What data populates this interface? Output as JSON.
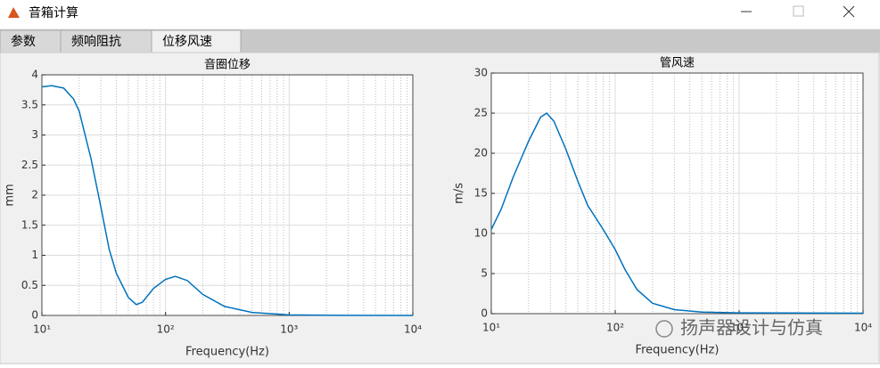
{
  "window": {
    "title": "音箱计算",
    "tabs": [
      "参数",
      "频响阻抗",
      "位移风速"
    ]
  },
  "watermark": "扬声器设计与仿真",
  "chart_data": [
    {
      "type": "line",
      "title": "音圈位移",
      "x_label": "Frequency(Hz)",
      "y_label": "mm",
      "xscale": "log",
      "grid": true,
      "minor_grid": true,
      "color": "#0072bd",
      "x": [
        10,
        12,
        15,
        18,
        20,
        25,
        30,
        35,
        40,
        50,
        58,
        65,
        80,
        100,
        120,
        150,
        200,
        300,
        500,
        1000,
        2000,
        10000
      ],
      "values": [
        3.8,
        3.82,
        3.78,
        3.6,
        3.4,
        2.6,
        1.8,
        1.1,
        0.7,
        0.3,
        0.18,
        0.22,
        0.45,
        0.6,
        0.65,
        0.58,
        0.35,
        0.15,
        0.05,
        0.01,
        0.003,
        0
      ],
      "xlim": [
        10,
        10000
      ],
      "xticks": [
        {
          "value": 10,
          "label": "10¹"
        },
        {
          "value": 100,
          "label": "10²"
        },
        {
          "value": 1000,
          "label": "10³"
        },
        {
          "value": 10000,
          "label": "10⁴"
        }
      ],
      "ylim": [
        0,
        4
      ],
      "yticks": [
        0,
        0.5,
        1,
        1.5,
        2,
        2.5,
        3,
        3.5,
        4
      ]
    },
    {
      "type": "line",
      "title": "管风速",
      "x_label": "Frequency(Hz)",
      "y_label": "m/s",
      "xscale": "log",
      "grid": true,
      "minor_grid": true,
      "color": "#0072bd",
      "x": [
        10,
        12,
        15,
        20,
        25,
        28,
        32,
        40,
        50,
        60,
        80,
        100,
        120,
        150,
        200,
        300,
        500,
        1000,
        10000
      ],
      "values": [
        10.5,
        13,
        17,
        21.5,
        24.5,
        25,
        24,
        20.5,
        16.5,
        13.5,
        10.5,
        8,
        5.5,
        3,
        1.3,
        0.5,
        0.2,
        0.1,
        0.05
      ],
      "xlim": [
        10,
        10000
      ],
      "xticks": [
        {
          "value": 10,
          "label": "10¹"
        },
        {
          "value": 100,
          "label": "10²"
        },
        {
          "value": 1000,
          "label": "10³"
        },
        {
          "value": 10000,
          "label": "10⁴"
        }
      ],
      "ylim": [
        0,
        30
      ],
      "yticks": [
        0,
        5,
        10,
        15,
        20,
        25,
        30
      ]
    }
  ]
}
